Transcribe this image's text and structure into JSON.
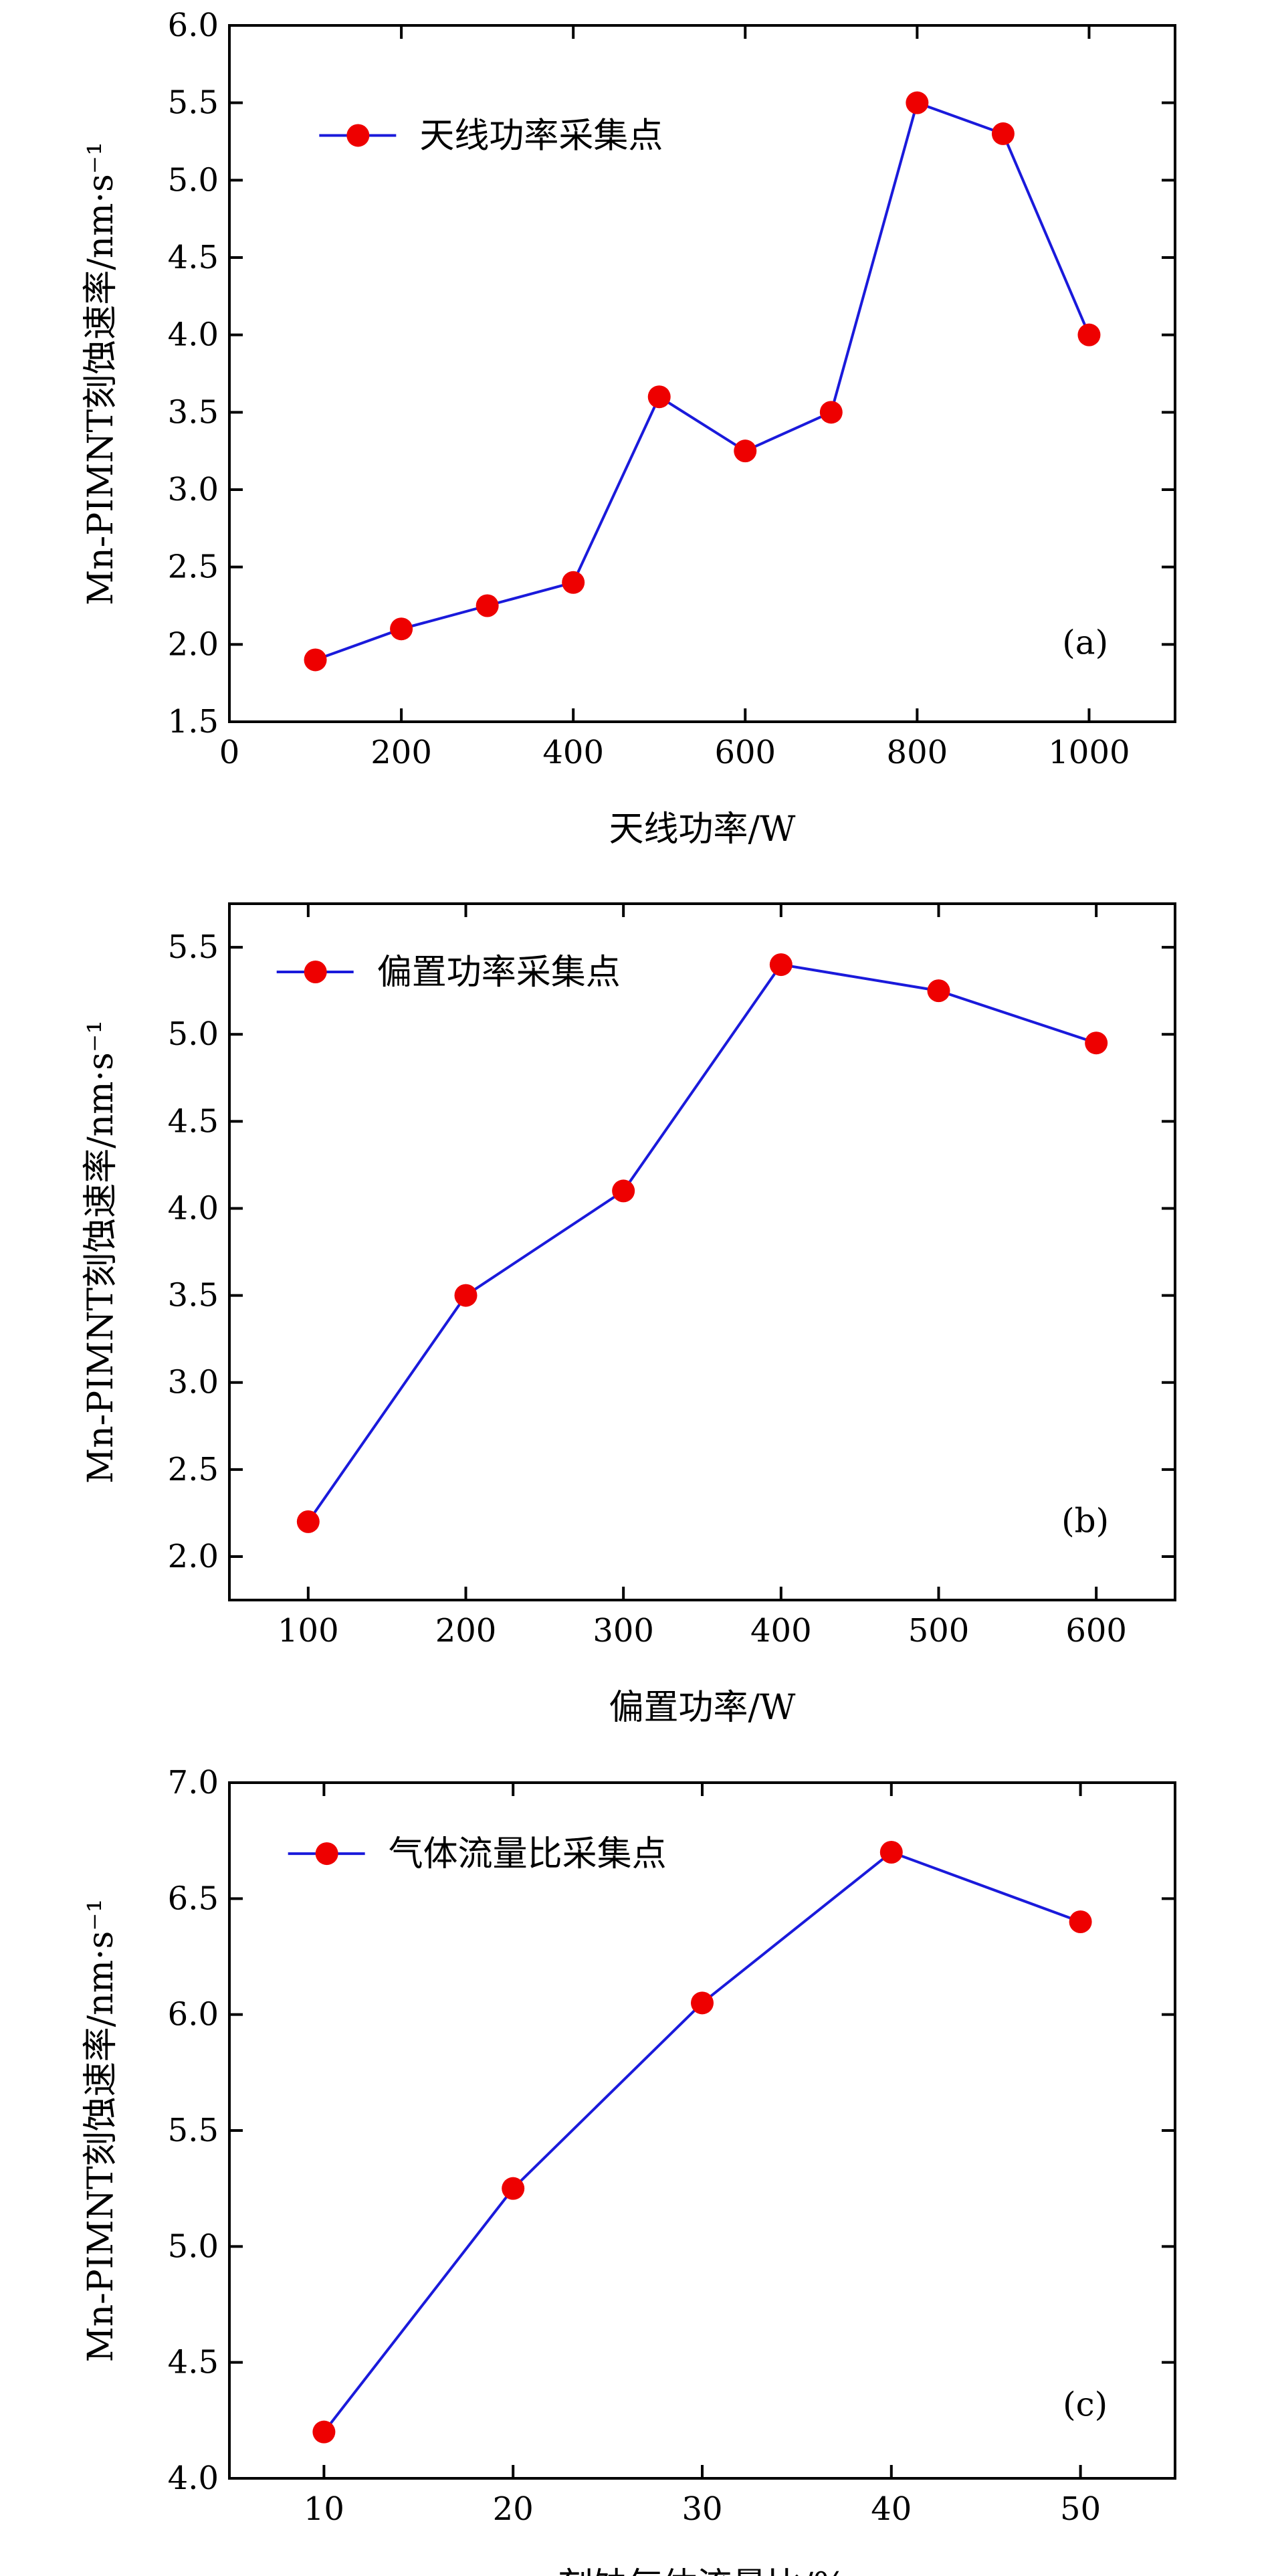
{
  "colors": {
    "line": "#1a1adb",
    "marker": "#ee0000",
    "axis": "#000000",
    "background": "#ffffff"
  },
  "chart_data": [
    {
      "type": "line",
      "panel_label": "(a)",
      "xlabel": "天线功率/W",
      "ylabel": "Mn-PIMNT刻蚀速率/nm·s⁻¹",
      "xlim": [
        0,
        1100
      ],
      "ylim": [
        1.5,
        6.0
      ],
      "xticks": [
        0,
        200,
        400,
        600,
        800,
        1000
      ],
      "yticks": [
        1.5,
        2.0,
        2.5,
        3.0,
        3.5,
        4.0,
        4.5,
        5.0,
        5.5,
        6.0
      ],
      "xtick_labels": [
        "0",
        "200",
        "400",
        "600",
        "800",
        "1000"
      ],
      "ytick_labels": [
        "1.5",
        "2.0",
        "2.5",
        "3.0",
        "3.5",
        "4.0",
        "4.5",
        "5.0",
        "5.5",
        "6.0"
      ],
      "grid": false,
      "legend_position": "top-left",
      "series": [
        {
          "name": "天线功率采集点",
          "x": [
            100,
            200,
            300,
            400,
            500,
            600,
            700,
            800,
            900,
            1000
          ],
          "y": [
            1.9,
            2.1,
            2.25,
            2.4,
            3.6,
            3.25,
            3.5,
            5.5,
            5.3,
            4.0
          ]
        }
      ]
    },
    {
      "type": "line",
      "panel_label": "(b)",
      "xlabel": "偏置功率/W",
      "ylabel": "Mn-PIMNT刻蚀速率/nm·s⁻¹",
      "xlim": [
        50,
        650
      ],
      "ylim": [
        1.75,
        5.75
      ],
      "xticks": [
        100,
        200,
        300,
        400,
        500,
        600
      ],
      "yticks": [
        2.0,
        2.5,
        3.0,
        3.5,
        4.0,
        4.5,
        5.0,
        5.5
      ],
      "xtick_labels": [
        "100",
        "200",
        "300",
        "400",
        "500",
        "600"
      ],
      "ytick_labels": [
        "2.0",
        "2.5",
        "3.0",
        "3.5",
        "4.0",
        "4.5",
        "5.0",
        "5.5"
      ],
      "grid": false,
      "legend_position": "top-left",
      "series": [
        {
          "name": "偏置功率采集点",
          "x": [
            100,
            200,
            300,
            400,
            500,
            600
          ],
          "y": [
            2.2,
            3.5,
            4.1,
            5.4,
            5.25,
            4.95
          ]
        }
      ]
    },
    {
      "type": "line",
      "panel_label": "(c)",
      "xlabel": "刻蚀气体流量比/%",
      "ylabel": "Mn-PIMNT刻蚀速率/nm·s⁻¹",
      "xlim": [
        5,
        55
      ],
      "ylim": [
        4.0,
        7.0
      ],
      "xticks": [
        10,
        20,
        30,
        40,
        50
      ],
      "yticks": [
        4.0,
        4.5,
        5.0,
        5.5,
        6.0,
        6.5,
        7.0
      ],
      "xtick_labels": [
        "10",
        "20",
        "30",
        "40",
        "50"
      ],
      "ytick_labels": [
        "4.0",
        "4.5",
        "5.0",
        "5.5",
        "6.0",
        "6.5",
        "7.0"
      ],
      "grid": false,
      "legend_position": "top-left",
      "series": [
        {
          "name": "气体流量比采集点",
          "x": [
            10,
            20,
            30,
            40,
            50
          ],
          "y": [
            4.2,
            5.25,
            6.05,
            6.7,
            6.4
          ]
        }
      ]
    }
  ]
}
